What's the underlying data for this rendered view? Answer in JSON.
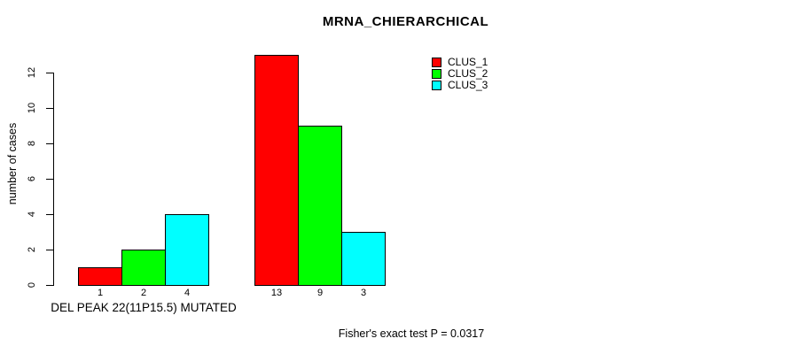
{
  "chart_data": {
    "type": "bar",
    "title": "MRNA_CHIERARCHICAL",
    "ylabel": "number of cases",
    "xlabel": "",
    "ylim": [
      0,
      13
    ],
    "yticks": [
      0,
      2,
      4,
      6,
      8,
      10,
      12
    ],
    "grid": false,
    "legend_position": "top-right",
    "series": [
      {
        "name": "CLUS_1",
        "color": "#FF0000"
      },
      {
        "name": "CLUS_2",
        "color": "#00FF00"
      },
      {
        "name": "CLUS_3",
        "color": "#00FFFF"
      }
    ],
    "groups": [
      {
        "label": "DEL PEAK 22(11P15.5) MUTATED",
        "values": [
          1,
          2,
          4
        ],
        "bar_labels": [
          "1",
          "2",
          "4"
        ]
      },
      {
        "label": "",
        "values": [
          13,
          9,
          3
        ],
        "bar_labels": [
          "13",
          "9",
          "3"
        ]
      }
    ],
    "annotation": "Fisher's exact test P = 0.0317"
  }
}
